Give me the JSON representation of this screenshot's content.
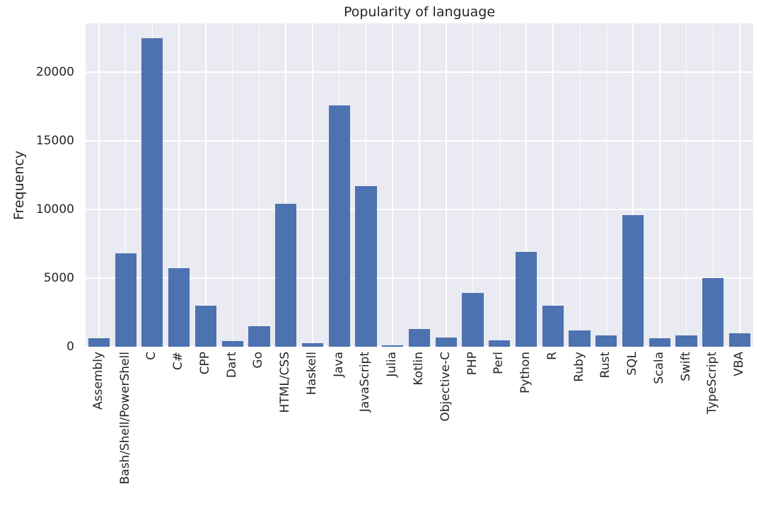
{
  "chart": {
    "title": "Popularity of language",
    "ylabel": "Frequency"
  },
  "chart_data": {
    "type": "bar",
    "title": "Popularity of language",
    "xlabel": "",
    "ylabel": "Frequency",
    "categories": [
      "Assembly",
      "Bash/Shell/PowerShell",
      "C",
      "C#",
      "CPP",
      "Dart",
      "Go",
      "HTML/CSS",
      "Haskell",
      "Java",
      "JavaScript",
      "Julia",
      "Kotlin",
      "Objective-C",
      "PHP",
      "Perl",
      "Python",
      "R",
      "Ruby",
      "Rust",
      "SQL",
      "Scala",
      "Swift",
      "TypeScript",
      "VBA"
    ],
    "values": [
      600,
      6800,
      22500,
      5700,
      3000,
      400,
      1500,
      10400,
      250,
      17600,
      11700,
      80,
      1300,
      650,
      3900,
      450,
      6900,
      3000,
      1200,
      800,
      9600,
      600,
      850,
      5000,
      1000
    ],
    "yticks": [
      0,
      5000,
      10000,
      15000,
      20000
    ],
    "ylim": [
      0,
      23560
    ],
    "grid": true,
    "legend": false,
    "bar_color": "#4c72b0",
    "plot_bg_color": "#eaeaf2",
    "grid_color": "#ffffff",
    "text_color": "#262626"
  }
}
